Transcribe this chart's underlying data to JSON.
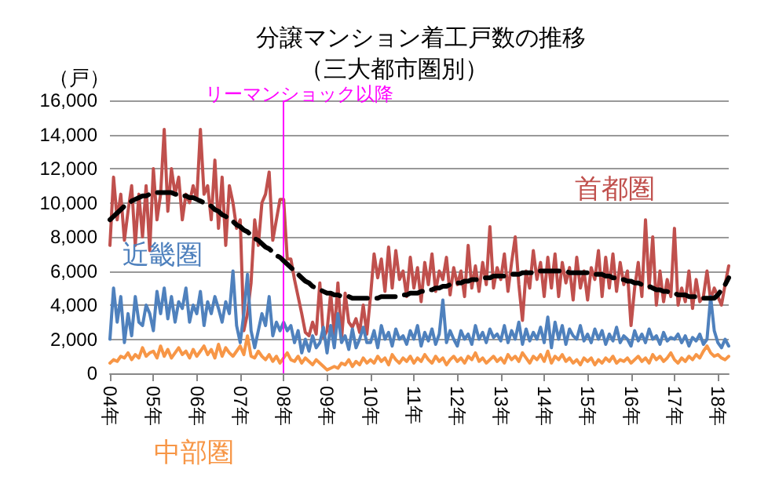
{
  "chart_data": {
    "type": "line",
    "title": "分譲マンション着工戸数の推移",
    "subtitle": "（三大都市圏別）",
    "ylabel": "（戸）",
    "categories": [
      "04年",
      null,
      null,
      null,
      null,
      null,
      null,
      null,
      null,
      null,
      null,
      null,
      "05年",
      null,
      null,
      null,
      null,
      null,
      null,
      null,
      null,
      null,
      null,
      null,
      "06年",
      null,
      null,
      null,
      null,
      null,
      null,
      null,
      null,
      null,
      null,
      null,
      "07年",
      null,
      null,
      null,
      null,
      null,
      null,
      null,
      null,
      null,
      null,
      null,
      "08年",
      null,
      null,
      null,
      null,
      null,
      null,
      null,
      null,
      null,
      null,
      null,
      "09年",
      null,
      null,
      null,
      null,
      null,
      null,
      null,
      null,
      null,
      null,
      null,
      "10年",
      null,
      null,
      null,
      null,
      null,
      null,
      null,
      null,
      null,
      null,
      null,
      "11年",
      null,
      null,
      null,
      null,
      null,
      null,
      null,
      null,
      null,
      null,
      null,
      "12年",
      null,
      null,
      null,
      null,
      null,
      null,
      null,
      null,
      null,
      null,
      null,
      "13年",
      null,
      null,
      null,
      null,
      null,
      null,
      null,
      null,
      null,
      null,
      null,
      "14年",
      null,
      null,
      null,
      null,
      null,
      null,
      null,
      null,
      null,
      null,
      null,
      "15年",
      null,
      null,
      null,
      null,
      null,
      null,
      null,
      null,
      null,
      null,
      null,
      "16年",
      null,
      null,
      null,
      null,
      null,
      null,
      null,
      null,
      null,
      null,
      null,
      "17年",
      null,
      null,
      null,
      null,
      null,
      null,
      null,
      null,
      null,
      null,
      null,
      "18年",
      null,
      null,
      null
    ],
    "series": [
      {
        "name": "首都圏",
        "color": "#c0504d",
        "values": [
          7500,
          11500,
          9000,
          10500,
          7800,
          9500,
          11000,
          7500,
          10500,
          8000,
          11000,
          7200,
          12000,
          9000,
          10500,
          14300,
          9500,
          12000,
          10500,
          11500,
          9000,
          10500,
          10000,
          11000,
          10200,
          14300,
          10500,
          11000,
          9000,
          12500,
          8500,
          11500,
          7500,
          11000,
          10000,
          8500,
          9000,
          2500,
          3500,
          5300,
          9000,
          7500,
          10000,
          10500,
          11800,
          7800,
          9000,
          10200,
          10200,
          6700,
          6700,
          5500,
          4500,
          3500,
          2400,
          2200,
          3000,
          2300,
          5300,
          2100,
          2500,
          4700,
          2300,
          5300,
          2000,
          4700,
          3000,
          2700,
          3200,
          2400,
          4000,
          2300,
          4500,
          7000,
          5600,
          6700,
          4800,
          7400,
          5000,
          7200,
          5500,
          6000,
          4500,
          6800,
          5000,
          6200,
          4200,
          6500,
          5200,
          7000,
          4800,
          6000,
          5500,
          6800,
          4600,
          6200,
          5200,
          6000,
          4500,
          7500,
          5000,
          6300,
          4800,
          6500,
          5200,
          8600,
          5000,
          6200,
          5500,
          7000,
          4800,
          6500,
          8000,
          5200,
          3100,
          6000,
          5000,
          7200,
          5500,
          6500,
          4500,
          6800,
          5000,
          7000,
          4500,
          6500,
          5300,
          6200,
          4300,
          6800,
          5000,
          6000,
          4300,
          6200,
          5500,
          7200,
          4500,
          6800,
          5000,
          7000,
          4800,
          6500,
          5200,
          6000,
          2800,
          5000,
          6500,
          4500,
          9000,
          5000,
          8000,
          4000,
          6000,
          4200,
          5500,
          4500,
          8500,
          4000,
          5000,
          4200,
          6000,
          3800,
          5500,
          4200,
          4500,
          6000,
          4300,
          5000,
          4500,
          4000,
          5200,
          6300
        ]
      },
      {
        "name": "近畿圏",
        "color": "#4f81bd",
        "values": [
          2000,
          5000,
          3000,
          4500,
          1800,
          3500,
          2200,
          4500,
          3000,
          2800,
          4000,
          3500,
          2500,
          4800,
          3500,
          5000,
          3200,
          4500,
          3000,
          4200,
          3800,
          5000,
          3000,
          4000,
          3500,
          4800,
          2800,
          4200,
          3500,
          4500,
          3800,
          3000,
          4200,
          3500,
          6000,
          2800,
          1800,
          3500,
          5800,
          2500,
          1500,
          2500,
          3500,
          2800,
          4500,
          2200,
          3000,
          2500,
          3000,
          2500,
          2800,
          1800,
          2500,
          1200,
          2000,
          1300,
          2200,
          1500,
          1800,
          2700,
          1200,
          2800,
          1500,
          3500,
          1800,
          2200,
          1400,
          2600,
          1500,
          2000,
          2700,
          1800,
          1800,
          2500,
          1500,
          2800,
          2000,
          2400,
          1600,
          2600,
          2000,
          2200,
          1700,
          2500,
          2000,
          2800,
          1600,
          2400,
          1900,
          2600,
          1700,
          2300,
          4300,
          1800,
          2500,
          2000,
          1600,
          2500,
          2000,
          2300,
          1700,
          2800,
          2000,
          2400,
          1800,
          2600,
          2100,
          2300,
          1900,
          2800,
          1800,
          2500,
          2000,
          3000,
          1700,
          2600,
          1900,
          2400,
          2000,
          2700,
          1800,
          3300,
          1500,
          3000,
          2000,
          2800,
          1700,
          2600,
          2200,
          2000,
          2800,
          1900,
          2300,
          1800,
          2600,
          2000,
          2500,
          1700,
          2300,
          1900,
          2700,
          1800,
          2200,
          2000,
          1600,
          2500,
          1900,
          2300,
          1800,
          2600,
          2000,
          2200,
          1700,
          2400,
          1900,
          2100,
          2000,
          2300,
          1800,
          2200,
          1600,
          2100,
          1900,
          2300,
          1700,
          2000,
          4500,
          2500,
          1800,
          1500,
          2000,
          1600
        ]
      },
      {
        "name": "中部圏",
        "color": "#f79646",
        "values": [
          600,
          800,
          700,
          1000,
          900,
          1200,
          800,
          1100,
          900,
          1500,
          1000,
          1200,
          1300,
          900,
          1600,
          1000,
          1400,
          900,
          1200,
          1500,
          1100,
          1300,
          900,
          1400,
          1000,
          1300,
          1600,
          1100,
          1400,
          900,
          1700,
          1000,
          1500,
          1200,
          1000,
          1300,
          1600,
          1100,
          2200,
          1000,
          900,
          1300,
          1000,
          800,
          1100,
          700,
          1000,
          600,
          900,
          1200,
          800,
          700,
          1000,
          600,
          900,
          700,
          500,
          800,
          600,
          400,
          200,
          300,
          400,
          300,
          600,
          500,
          800,
          400,
          700,
          500,
          900,
          600,
          800,
          600,
          1000,
          700,
          900,
          500,
          1100,
          800,
          600,
          900,
          700,
          1000,
          600,
          900,
          700,
          1100,
          800,
          600,
          1000,
          700,
          900,
          500,
          800,
          1000,
          700,
          900,
          600,
          1000,
          800,
          1200,
          700,
          900,
          600,
          800,
          1000,
          700,
          900,
          600,
          1100,
          800,
          1000,
          700,
          1200,
          900,
          600,
          1000,
          800,
          1100,
          700,
          1300,
          600,
          1000,
          800,
          1100,
          700,
          900,
          600,
          800,
          500,
          900,
          700,
          900,
          500,
          800,
          600,
          900,
          700,
          1000,
          600,
          800,
          700,
          900,
          600,
          800,
          1000,
          700,
          900,
          600,
          1100,
          800,
          1000,
          700,
          900,
          1200,
          800,
          600,
          900,
          700,
          1000,
          800,
          1100,
          900,
          1300,
          1600,
          1200,
          1000,
          1100,
          900,
          800,
          1000
        ]
      },
      {
        "color": "#000000",
        "line_style": "dashed",
        "values": [
          9000,
          9200,
          9400,
          9600,
          9800,
          9900,
          10100,
          10200,
          10300,
          10400,
          10400,
          10500,
          10500,
          10600,
          10600,
          10600,
          10600,
          10600,
          10500,
          10500,
          10400,
          10400,
          10300,
          10300,
          10200,
          10100,
          10000,
          9900,
          9800,
          9600,
          9500,
          9300,
          9200,
          9000,
          8900,
          8700,
          8600,
          8400,
          8300,
          8100,
          7900,
          7800,
          7600,
          7400,
          7300,
          7100,
          6900,
          6800,
          6600,
          6400,
          6200,
          6000,
          5800,
          5600,
          5400,
          5300,
          5100,
          5000,
          4900,
          4800,
          4700,
          4700,
          4600,
          4600,
          4500,
          4500,
          4500,
          4400,
          4400,
          4400,
          4400,
          4400,
          4400,
          4400,
          4400,
          4500,
          4500,
          4500,
          4500,
          4500,
          4600,
          4600,
          4600,
          4700,
          4700,
          4700,
          4800,
          4800,
          4900,
          4900,
          5000,
          5000,
          5100,
          5100,
          5200,
          5200,
          5300,
          5300,
          5400,
          5400,
          5500,
          5500,
          5500,
          5600,
          5600,
          5600,
          5700,
          5700,
          5700,
          5700,
          5800,
          5800,
          5800,
          5800,
          5900,
          5900,
          5900,
          5900,
          6000,
          6000,
          6000,
          6000,
          6000,
          6000,
          6000,
          6000,
          6000,
          5900,
          5900,
          5900,
          5900,
          5900,
          5900,
          5800,
          5800,
          5800,
          5800,
          5700,
          5700,
          5600,
          5600,
          5500,
          5500,
          5400,
          5400,
          5300,
          5300,
          5200,
          5100,
          5100,
          5000,
          4900,
          4900,
          4800,
          4800,
          4700,
          4700,
          4600,
          4600,
          4600,
          4500,
          4500,
          4500,
          4400,
          4400,
          4400,
          4400,
          4400,
          4600,
          4900,
          5200,
          5600
        ]
      }
    ],
    "ylim": [
      0,
      16000
    ],
    "yticks": [
      0,
      {
        "value": 2000,
        "label": "2,000"
      },
      {
        "value": 4000,
        "label": "4,000"
      },
      {
        "value": 6000,
        "label": "6,000"
      },
      {
        "value": 8000,
        "label": "8,000"
      },
      {
        "value": 10000,
        "label": "10,000"
      },
      {
        "value": 12000,
        "label": "12,000"
      },
      {
        "value": 14000,
        "label": "14,000"
      },
      {
        "value": 16000,
        "label": "16,000"
      }
    ],
    "grid": "y",
    "legend": false,
    "marker": "none",
    "line_style": "solid",
    "ref_lines": [
      {
        "axis": "x",
        "value": "08年",
        "label": "リーマンショック以降",
        "color": "#ff00ff"
      }
    ]
  }
}
